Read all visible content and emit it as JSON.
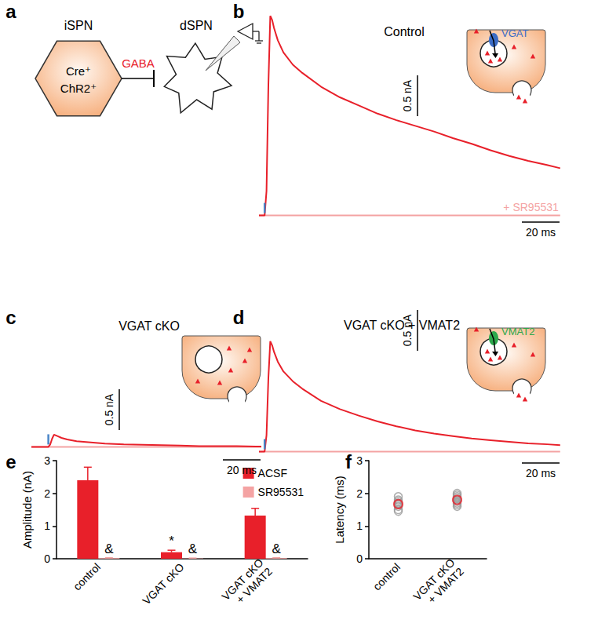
{
  "diagram": {
    "panel": "a",
    "nodes": [
      {
        "label": "iSPN",
        "sublabels": [
          "Cre⁺",
          "ChR2⁺"
        ]
      },
      {
        "label": "dSPN"
      }
    ],
    "edge_label": "GABA"
  },
  "chart_data": [
    {
      "panel": "b",
      "type": "line",
      "title": "Control",
      "inset": {
        "label": "VGAT",
        "color": "#3b6cc6"
      },
      "x": [
        -3,
        0,
        1,
        2,
        3,
        4,
        5,
        7,
        10,
        15,
        20,
        30,
        40,
        50,
        60,
        70,
        80,
        90,
        100,
        110,
        120,
        130,
        140,
        150,
        157
      ],
      "series": [
        {
          "color": "#e8202a",
          "values": [
            0,
            0,
            0.3,
            1.6,
            2.45,
            2.4,
            2.3,
            2.15,
            2.0,
            1.85,
            1.75,
            1.58,
            1.45,
            1.35,
            1.25,
            1.17,
            1.1,
            1.03,
            0.95,
            0.88,
            0.8,
            0.73,
            0.67,
            0.62,
            0.58
          ]
        },
        {
          "name": "+ SR95531",
          "color": "#f4a3a3",
          "values": [
            0,
            0,
            0,
            0,
            0,
            0,
            0,
            0,
            0,
            0,
            0,
            0,
            0,
            0,
            0,
            0,
            0,
            0,
            0,
            0,
            0,
            0,
            0,
            0,
            0
          ]
        }
      ],
      "stimulus_ms": 0,
      "scale_bar": {
        "y": 0.5,
        "y_label": "0.5 nA",
        "x": 20,
        "x_label": "20 ms"
      },
      "xlim": [
        -3,
        160
      ],
      "ylim": [
        -0.1,
        2.5
      ],
      "tick_labels": false
    },
    {
      "panel": "c",
      "type": "line",
      "title": "VGAT cKO",
      "x": [
        -9,
        0,
        1,
        2,
        3,
        4,
        5,
        7,
        10,
        15,
        20,
        30,
        40,
        50,
        60,
        70,
        80,
        90,
        100,
        110,
        113
      ],
      "series": [
        {
          "color": "#e8202a",
          "values": [
            0,
            0,
            0.03,
            0.1,
            0.15,
            0.14,
            0.13,
            0.11,
            0.09,
            0.07,
            0.06,
            0.04,
            0.03,
            0.025,
            0.02,
            0.015,
            0.01,
            0.01,
            0.01,
            0.005,
            0.005
          ]
        },
        {
          "color": "#f4a3a3",
          "values": [
            0,
            0,
            0,
            0,
            0,
            0,
            0,
            0,
            0,
            0,
            0,
            0,
            0,
            0,
            0,
            0,
            0,
            0,
            0,
            0,
            0
          ]
        }
      ],
      "stimulus_ms": 0,
      "scale_bar": {
        "y": 0.5,
        "y_label": "0.5 nA",
        "x": 20,
        "x_label": "20 ms"
      },
      "xlim": [
        -9,
        113
      ],
      "ylim": [
        -0.15,
        1.4
      ],
      "tick_labels": false
    },
    {
      "panel": "d",
      "type": "line",
      "title": "VGAT cKO + VMAT2",
      "inset": {
        "label": "VMAT2",
        "color": "#2ca84c"
      },
      "x": [
        -3,
        0,
        1,
        2,
        3,
        4,
        5,
        7,
        10,
        15,
        20,
        30,
        40,
        50,
        60,
        70,
        80,
        90,
        100,
        110,
        120,
        130,
        140,
        150,
        157
      ],
      "series": [
        {
          "color": "#e8202a",
          "values": [
            0,
            0,
            0.2,
            0.9,
            1.35,
            1.3,
            1.22,
            1.1,
            0.98,
            0.86,
            0.77,
            0.62,
            0.52,
            0.44,
            0.37,
            0.31,
            0.26,
            0.22,
            0.19,
            0.16,
            0.14,
            0.12,
            0.1,
            0.09,
            0.08
          ]
        },
        {
          "color": "#f4a3a3",
          "values": [
            0,
            0,
            0,
            0,
            0,
            0,
            0,
            0,
            0,
            0,
            0,
            0,
            0,
            0,
            0,
            0,
            0,
            0,
            0,
            0,
            0,
            0,
            0,
            0,
            0
          ]
        }
      ],
      "stimulus_ms": 0,
      "scale_bar": {
        "y": 0.5,
        "y_label": "0.5 nA",
        "x": 20,
        "x_label": "20 ms"
      },
      "xlim": [
        -3,
        160
      ],
      "ylim": [
        -0.12,
        1.8
      ],
      "tick_labels": false
    },
    {
      "panel": "e",
      "type": "bar",
      "categories": [
        "control",
        "VGAT cKO",
        "VGAT cKO\n+ VMAT2"
      ],
      "series": [
        {
          "name": "ACSF",
          "color": "#e8202a",
          "values": [
            2.4,
            0.2,
            1.32
          ],
          "errors": [
            0.4,
            0.06,
            0.22
          ]
        },
        {
          "name": "SR95531",
          "color": "#f4a3a3",
          "values": [
            0.02,
            0.01,
            0.02
          ],
          "errors": [
            0.01,
            0.01,
            0.01
          ]
        }
      ],
      "annotations": [
        {
          "text": "*",
          "category": "VGAT cKO",
          "series": "ACSF"
        },
        {
          "text": "&",
          "category": "control",
          "series": "SR95531"
        },
        {
          "text": "&",
          "category": "VGAT cKO",
          "series": "SR95531"
        },
        {
          "text": "&",
          "category": "VGAT cKO\n+ VMAT2",
          "series": "SR95531"
        }
      ],
      "y_label": "Amplitude (nA)",
      "ylim": [
        0,
        3
      ],
      "yticks": [
        0,
        1,
        2,
        3
      ],
      "legend": "top-right"
    },
    {
      "panel": "f",
      "type": "scatter",
      "categories": [
        "control",
        "VGAT cKO\n+ VMAT2"
      ],
      "series": [
        {
          "color": "#999999",
          "marker": "open_circle",
          "values": [
            [
              1.45,
              1.5,
              1.6,
              1.65,
              1.7,
              1.75,
              1.8,
              1.9
            ],
            [
              1.6,
              1.65,
              1.7,
              1.75,
              1.8,
              1.85,
              1.9,
              1.95,
              2.0
            ]
          ]
        },
        {
          "color": "#e8202a",
          "marker": "open_circle",
          "values": [
            1.67,
            1.8
          ]
        }
      ],
      "y_label": "Latency (ms)",
      "ylim": [
        0,
        3
      ],
      "yticks": [
        0,
        1,
        2,
        3
      ]
    }
  ]
}
